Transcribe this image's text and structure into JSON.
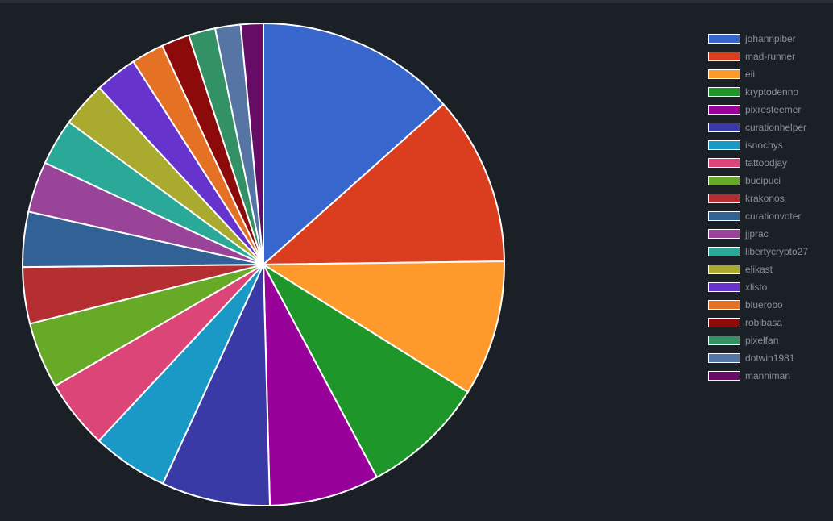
{
  "chart_data": {
    "type": "pie",
    "legend_position": "right",
    "slices": [
      {
        "label": "johannpiber",
        "value": 14.2,
        "color": "#3766cc"
      },
      {
        "label": "mad-runner",
        "value": 12.0,
        "color": "#db3e1f"
      },
      {
        "label": "eii",
        "value": 9.6,
        "color": "#fe9a2b"
      },
      {
        "label": "kryptodenno",
        "value": 8.8,
        "color": "#1f962a"
      },
      {
        "label": "pixresteemer",
        "value": 7.8,
        "color": "#99029a"
      },
      {
        "label": "curationhelper",
        "value": 7.7,
        "color": "#3a3aa6"
      },
      {
        "label": "isnochys",
        "value": 5.4,
        "color": "#1b99c6"
      },
      {
        "label": "tattoodjay",
        "value": 4.9,
        "color": "#db4578"
      },
      {
        "label": "bucipuci",
        "value": 4.7,
        "color": "#66aa27"
      },
      {
        "label": "krakonos",
        "value": 4.0,
        "color": "#b52e31"
      },
      {
        "label": "curationvoter",
        "value": 3.9,
        "color": "#326196"
      },
      {
        "label": "jjprac",
        "value": 3.6,
        "color": "#994399"
      },
      {
        "label": "libertycrypto27",
        "value": 3.3,
        "color": "#2ba998"
      },
      {
        "label": "elikast",
        "value": 3.2,
        "color": "#aaaa2e"
      },
      {
        "label": "xlisto",
        "value": 3.0,
        "color": "#6634cc"
      },
      {
        "label": "bluerobo",
        "value": 2.3,
        "color": "#e57125"
      },
      {
        "label": "robibasa",
        "value": 2.0,
        "color": "#8c0a0a"
      },
      {
        "label": "pixelfan",
        "value": 1.9,
        "color": "#339166"
      },
      {
        "label": "dotwin1981",
        "value": 1.8,
        "color": "#5675a5"
      },
      {
        "label": "manniman",
        "value": 1.6,
        "color": "#660c66"
      }
    ]
  }
}
